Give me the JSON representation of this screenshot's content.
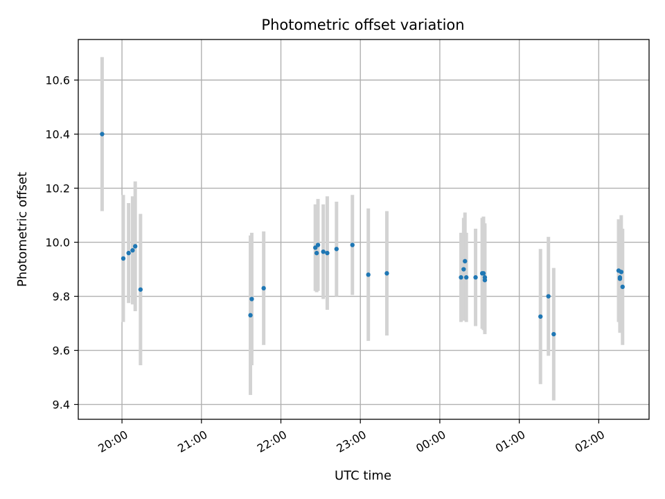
{
  "chart_data": {
    "type": "scatter",
    "title": "Photometric offset variation",
    "xlabel": "UTC time",
    "ylabel": "Photometric offset",
    "x_axis_kind": "time",
    "xlim": [
      "19:27",
      "02:38"
    ],
    "ylim": [
      9.345,
      10.75
    ],
    "x_ticks": [
      "20:00",
      "21:00",
      "22:00",
      "23:00",
      "00:00",
      "01:00",
      "02:00"
    ],
    "y_ticks": [
      "9.4",
      "9.6",
      "9.8",
      "10.0",
      "10.2",
      "10.4",
      "10.6"
    ],
    "grid": true,
    "colors": {
      "points": "#1f77b4",
      "error_bars": "#d3d3d3",
      "grid": "#b0b0b0"
    },
    "series": [
      {
        "points": [
          {
            "t": "19:45",
            "y": 10.4,
            "err": 0.285
          },
          {
            "t": "20:01",
            "y": 9.94,
            "err": 0.235
          },
          {
            "t": "20:05",
            "y": 9.96,
            "err": 0.185
          },
          {
            "t": "20:08",
            "y": 9.97,
            "err": 0.2
          },
          {
            "t": "20:10",
            "y": 9.985,
            "err": 0.24
          },
          {
            "t": "20:14",
            "y": 9.825,
            "err": 0.28
          },
          {
            "t": "21:37",
            "y": 9.73,
            "err": 0.295
          },
          {
            "t": "21:38",
            "y": 9.79,
            "err": 0.245
          },
          {
            "t": "21:47",
            "y": 9.83,
            "err": 0.21
          },
          {
            "t": "22:26",
            "y": 9.98,
            "err": 0.16
          },
          {
            "t": "22:27",
            "y": 9.96,
            "err": 0.145
          },
          {
            "t": "22:28",
            "y": 9.99,
            "err": 0.17
          },
          {
            "t": "22:32",
            "y": 9.965,
            "err": 0.175
          },
          {
            "t": "22:35",
            "y": 9.96,
            "err": 0.21
          },
          {
            "t": "22:42",
            "y": 9.975,
            "err": 0.175
          },
          {
            "t": "22:54",
            "y": 9.99,
            "err": 0.185
          },
          {
            "t": "23:06",
            "y": 9.88,
            "err": 0.245
          },
          {
            "t": "23:20",
            "y": 9.885,
            "err": 0.23
          },
          {
            "t": "00:16",
            "y": 9.87,
            "err": 0.165
          },
          {
            "t": "00:18",
            "y": 9.9,
            "err": 0.19
          },
          {
            "t": "00:19",
            "y": 9.93,
            "err": 0.18
          },
          {
            "t": "00:20",
            "y": 9.87,
            "err": 0.165
          },
          {
            "t": "00:27",
            "y": 9.87,
            "err": 0.18
          },
          {
            "t": "00:32",
            "y": 9.885,
            "err": 0.205
          },
          {
            "t": "00:33",
            "y": 9.885,
            "err": 0.21
          },
          {
            "t": "00:34",
            "y": 9.86,
            "err": 0.2
          },
          {
            "t": "00:34",
            "y": 9.87,
            "err": 0.2
          },
          {
            "t": "01:16",
            "y": 9.725,
            "err": 0.25
          },
          {
            "t": "01:22",
            "y": 9.8,
            "err": 0.22
          },
          {
            "t": "01:26",
            "y": 9.66,
            "err": 0.245
          },
          {
            "t": "02:15",
            "y": 9.895,
            "err": 0.19
          },
          {
            "t": "02:16",
            "y": 9.87,
            "err": 0.2
          },
          {
            "t": "02:16",
            "y": 9.865,
            "err": 0.2
          },
          {
            "t": "02:17",
            "y": 9.89,
            "err": 0.21
          },
          {
            "t": "02:18",
            "y": 9.835,
            "err": 0.215
          }
        ]
      }
    ]
  }
}
